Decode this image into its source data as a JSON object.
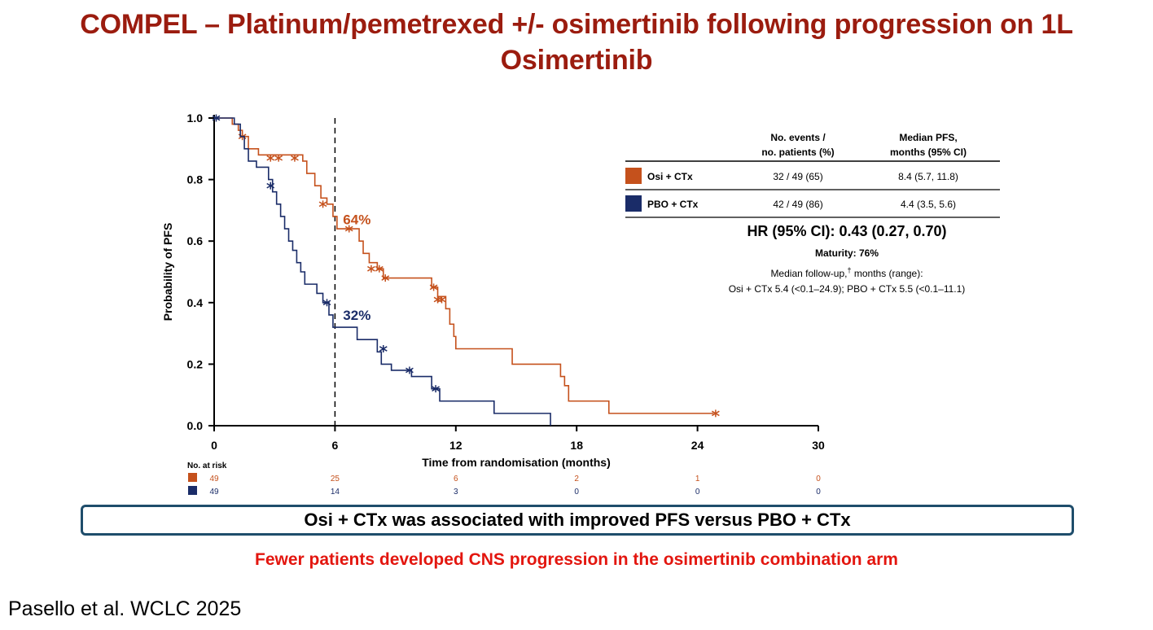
{
  "title": "COMPEL – Platinum/pemetrexed +/- osimertinib following progression on 1L Osimertinib",
  "colors": {
    "osi": "#c5511c",
    "pbo": "#1a2c68",
    "title": "#9b1c0f",
    "note": "#e3160f"
  },
  "chart_data": {
    "type": "line",
    "subtype": "kaplan-meier",
    "xlabel": "Time from randomisation (months)",
    "ylabel": "Probability of PFS",
    "xlim": [
      0,
      30
    ],
    "ylim": [
      0,
      1
    ],
    "xticks": [
      "0",
      "6",
      "12",
      "18",
      "24",
      "30"
    ],
    "yticks": [
      "0.0",
      "0.2",
      "0.4",
      "0.6",
      "0.8",
      "1.0"
    ],
    "reference_line_x": 6,
    "series": [
      {
        "name": "Osi + CTx",
        "color": "#c5511c",
        "steps": [
          [
            0,
            1.0
          ],
          [
            0.9,
            0.98
          ],
          [
            1.2,
            0.96
          ],
          [
            1.4,
            0.94
          ],
          [
            1.7,
            0.9
          ],
          [
            2.2,
            0.88
          ],
          [
            4.4,
            0.86
          ],
          [
            4.6,
            0.82
          ],
          [
            5.0,
            0.78
          ],
          [
            5.3,
            0.74
          ],
          [
            5.6,
            0.72
          ],
          [
            5.9,
            0.68
          ],
          [
            6.1,
            0.64
          ],
          [
            7.2,
            0.6
          ],
          [
            7.4,
            0.56
          ],
          [
            7.7,
            0.53
          ],
          [
            8.1,
            0.51
          ],
          [
            8.4,
            0.48
          ],
          [
            10.8,
            0.45
          ],
          [
            11.1,
            0.42
          ],
          [
            11.5,
            0.38
          ],
          [
            11.7,
            0.33
          ],
          [
            11.9,
            0.29
          ],
          [
            12.0,
            0.25
          ],
          [
            14.8,
            0.2
          ],
          [
            17.2,
            0.16
          ],
          [
            17.4,
            0.13
          ],
          [
            17.6,
            0.08
          ],
          [
            19.6,
            0.04
          ],
          [
            24.8,
            0.04
          ]
        ],
        "censor": [
          [
            1.4,
            0.94
          ],
          [
            2.8,
            0.87
          ],
          [
            3.2,
            0.87
          ],
          [
            4.0,
            0.87
          ],
          [
            5.4,
            0.72
          ],
          [
            6.7,
            0.64
          ],
          [
            7.8,
            0.51
          ],
          [
            8.2,
            0.51
          ],
          [
            8.5,
            0.48
          ],
          [
            10.9,
            0.45
          ],
          [
            11.1,
            0.41
          ],
          [
            11.3,
            0.41
          ],
          [
            24.9,
            0.04
          ]
        ]
      },
      {
        "name": "PBO + CTx",
        "color": "#1a2c68",
        "steps": [
          [
            0,
            1.0
          ],
          [
            1.0,
            0.98
          ],
          [
            1.3,
            0.94
          ],
          [
            1.5,
            0.9
          ],
          [
            1.7,
            0.86
          ],
          [
            2.1,
            0.84
          ],
          [
            2.7,
            0.8
          ],
          [
            2.9,
            0.76
          ],
          [
            3.1,
            0.72
          ],
          [
            3.3,
            0.68
          ],
          [
            3.5,
            0.64
          ],
          [
            3.7,
            0.6
          ],
          [
            3.9,
            0.57
          ],
          [
            4.1,
            0.53
          ],
          [
            4.3,
            0.5
          ],
          [
            4.5,
            0.46
          ],
          [
            5.1,
            0.43
          ],
          [
            5.4,
            0.4
          ],
          [
            5.7,
            0.36
          ],
          [
            5.9,
            0.32
          ],
          [
            7.1,
            0.28
          ],
          [
            8.1,
            0.24
          ],
          [
            8.3,
            0.2
          ],
          [
            8.8,
            0.18
          ],
          [
            9.8,
            0.16
          ],
          [
            10.8,
            0.12
          ],
          [
            11.2,
            0.08
          ],
          [
            13.9,
            0.04
          ],
          [
            16.7,
            0.0
          ]
        ],
        "censor": [
          [
            0.1,
            1.0
          ],
          [
            2.8,
            0.78
          ],
          [
            5.6,
            0.4
          ],
          [
            8.4,
            0.25
          ],
          [
            9.7,
            0.18
          ],
          [
            11.0,
            0.12
          ]
        ]
      }
    ],
    "annotations": [
      {
        "text": "64%",
        "x": 6.4,
        "y": 0.67,
        "series": "Osi + CTx"
      },
      {
        "text": "32%",
        "x": 6.4,
        "y": 0.36,
        "series": "PBO + CTx"
      }
    ],
    "risk_table": {
      "label": "No. at risk",
      "times": [
        0,
        6,
        12,
        18,
        24,
        30
      ],
      "rows": [
        {
          "series": "Osi + CTx",
          "values": [
            "49",
            "25",
            "6",
            "2",
            "1",
            "0"
          ]
        },
        {
          "series": "PBO + CTx",
          "values": [
            "49",
            "14",
            "3",
            "0",
            "0",
            "0"
          ]
        }
      ]
    },
    "summary_table": {
      "header_events_line1": "No. events /",
      "header_events_line2": "no. patients (%)",
      "header_pfs_line1": "Median PFS,",
      "header_pfs_line2": "months (95% CI)",
      "rows": [
        {
          "arm": "Osi + CTx",
          "events": "32 / 49 (65)",
          "pfs": "8.4 (5.7, 11.8)"
        },
        {
          "arm": "PBO + CTx",
          "events": "42 / 49 (86)",
          "pfs": "4.4 (3.5, 5.6)"
        }
      ],
      "hr": "HR (95% CI): 0.43 (0.27, 0.70)",
      "maturity": "Maturity: 76%",
      "followup_label": "Median follow-up,",
      "followup_dagger": "†",
      "followup_suffix": " months (range):",
      "followup_values": "Osi + CTx 5.4 (<0.1–24.9); PBO + CTx 5.5 (<0.1–11.1)"
    }
  },
  "conclusion": "Osi + CTx was associated with improved PFS versus PBO + CTx",
  "note": "Fewer patients developed CNS progression in the osimertinib combination arm",
  "citation": "Pasello et al. WCLC 2025"
}
